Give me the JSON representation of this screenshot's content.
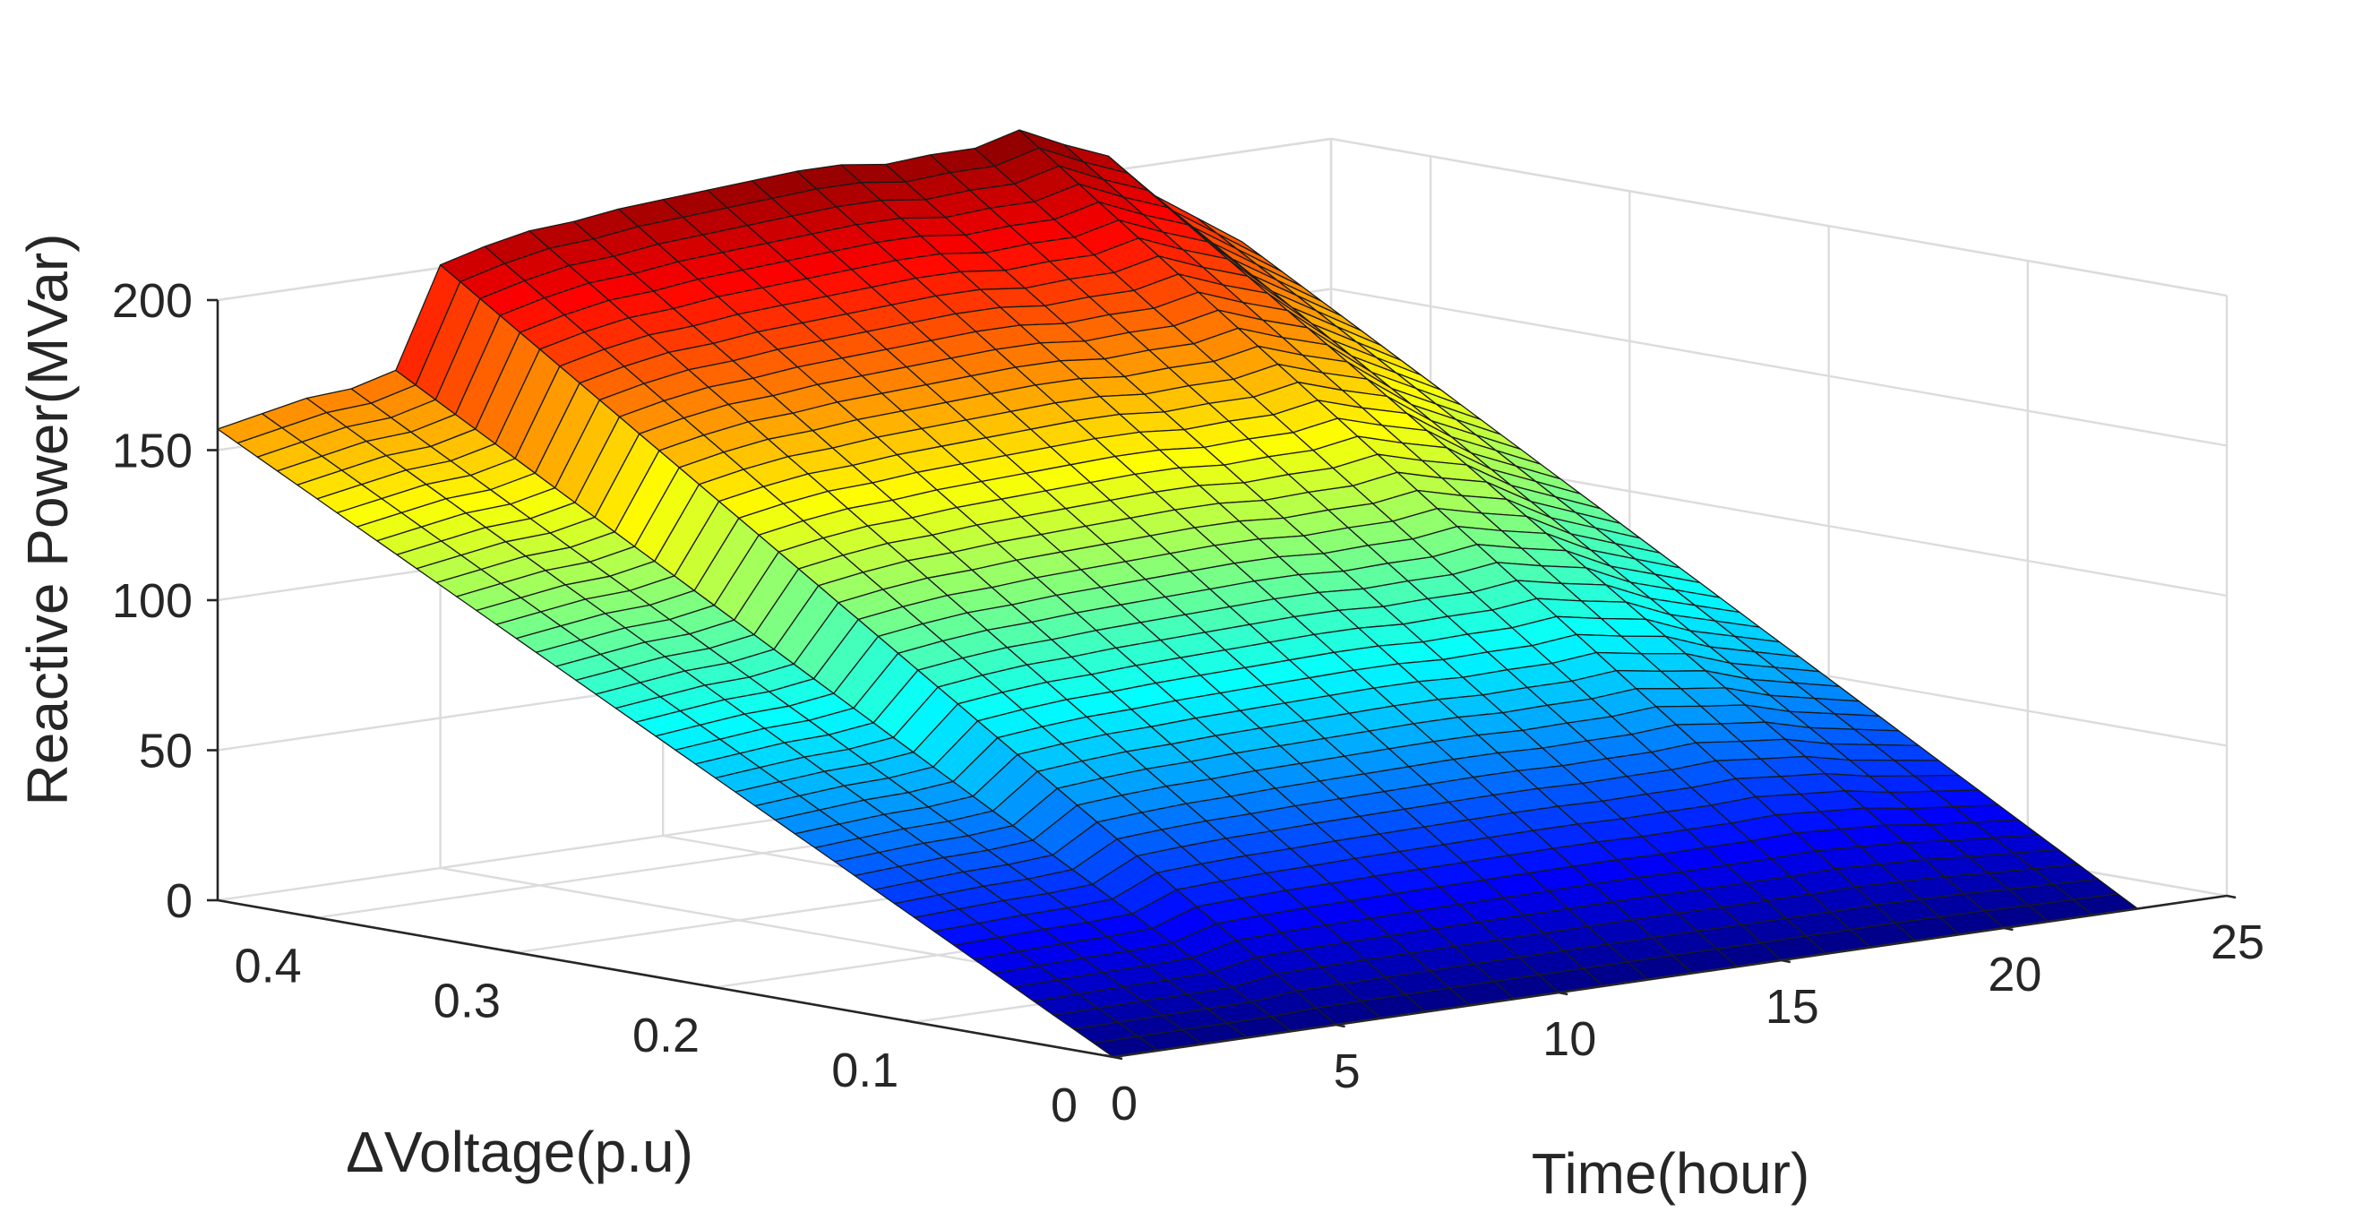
{
  "chart_data": {
    "type": "surface",
    "colormap": "jet",
    "title": "",
    "xlabel": "Time(hour)",
    "ylabel": "ΔVoltage(p.u)",
    "zlabel": "Reactive Power(MVar)",
    "xlim": [
      0,
      25
    ],
    "ylim": [
      0,
      0.45
    ],
    "zlim": [
      0,
      200
    ],
    "grid": true,
    "x_ticks": [
      0,
      5,
      10,
      15,
      20,
      25
    ],
    "y_ticks": [
      0,
      0.1,
      0.2,
      0.3,
      0.4
    ],
    "z_ticks": [
      0,
      50,
      100,
      150,
      200
    ],
    "x_tick_labels": [
      "0",
      "5",
      "10",
      "15",
      "20",
      "25"
    ],
    "y_tick_labels": [
      "0",
      "0.1",
      "0.2",
      "0.3",
      "0.4"
    ],
    "z_tick_labels": [
      "0",
      "50",
      "100",
      "150",
      "200"
    ],
    "x": [
      0,
      1,
      2,
      3,
      4,
      5,
      6,
      7,
      8,
      9,
      10,
      11,
      12,
      13,
      14,
      15,
      16,
      17,
      18,
      19,
      20,
      21,
      22,
      23
    ],
    "y_range": [
      0,
      0.45
    ],
    "y_steps": 45,
    "z_model": "reactive_power = peak(hour) * dV / 0.45",
    "peak_by_hour": [
      157,
      160,
      163,
      164,
      168,
      201,
      205,
      208,
      209,
      211,
      212,
      213,
      214,
      215,
      215,
      213,
      214,
      214,
      218,
      211,
      205,
      190,
      180,
      170
    ]
  }
}
